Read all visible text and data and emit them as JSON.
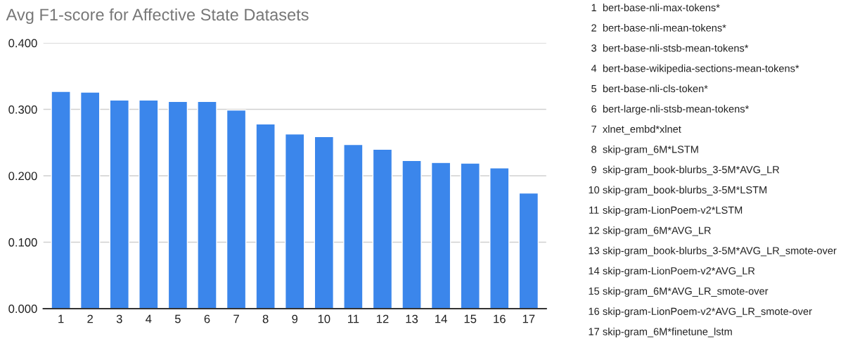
{
  "chart_data": {
    "type": "bar",
    "title": "Avg F1-score for Affective State Datasets",
    "categories": [
      "1",
      "2",
      "3",
      "4",
      "5",
      "6",
      "7",
      "8",
      "9",
      "10",
      "11",
      "12",
      "13",
      "14",
      "15",
      "16",
      "17"
    ],
    "values": [
      0.327,
      0.326,
      0.314,
      0.314,
      0.312,
      0.312,
      0.299,
      0.278,
      0.263,
      0.259,
      0.247,
      0.24,
      0.223,
      0.22,
      0.219,
      0.212,
      0.174
    ],
    "color": "#3b86eb",
    "ylim": [
      0,
      0.4
    ],
    "yticks": [
      {
        "value": 0,
        "label": "0.000"
      },
      {
        "value": 0.1,
        "label": "0.100"
      },
      {
        "value": 0.2,
        "label": "0.200"
      },
      {
        "value": 0.3,
        "label": "0.300"
      },
      {
        "value": 0.4,
        "label": "0.400"
      }
    ],
    "grid": "y",
    "annotations": [
      "1  bert-base-nli-max-tokens*",
      "2  bert-base-nli-mean-tokens*",
      "3  bert-base-nli-stsb-mean-tokens*",
      "4  bert-base-wikipedia-sections-mean-tokens*",
      "5  bert-base-nli-cls-token*",
      "6  bert-large-nli-stsb-mean-tokens*",
      "7  xlnet_embd*xlnet",
      "8  skip-gram_6M*LSTM",
      "9  skip-gram_book-blurbs_3-5M*AVG_LR",
      "10  skip-gram_book-blurbs_3-5M*LSTM",
      "11  skip-gram-LionPoem-v2*LSTM",
      "12  skip-gram_6M*AVG_LR",
      "13  skip-gram_book-blurbs_3-5M*AVG_LR_smote-over",
      "14  skip-gram-LionPoem-v2*AVG_LR",
      "15  skip-gram_6M*AVG_LR_smote-over",
      "16  skip-gram-LionPoem-v2*AVG_LR_smote-over",
      "17  skip-gram_6M*finetune_lstm"
    ]
  }
}
